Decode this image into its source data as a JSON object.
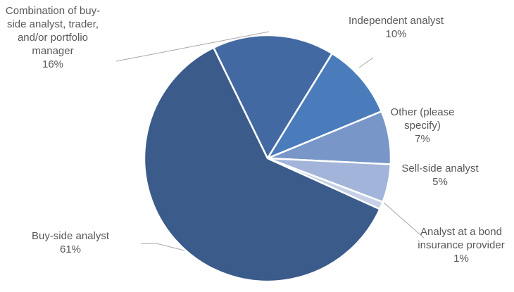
{
  "chart_data": {
    "type": "pie",
    "categories": [
      "Combination of buy-side analyst, trader, and/or portfolio manager",
      "Independent analyst",
      "Other (please specify)",
      "Sell-side analyst",
      "Analyst at a bond insurance provider",
      "Buy-side analyst"
    ],
    "values": [
      16,
      10,
      7,
      5,
      1,
      61
    ],
    "value_labels": [
      "16%",
      "10%",
      "7%",
      "5%",
      "1%",
      "61%"
    ],
    "colors": [
      "#4269a1",
      "#4a7bbb",
      "#7896c8",
      "#a2b4d9",
      "#c6d0e6",
      "#3b5b8b"
    ]
  }
}
